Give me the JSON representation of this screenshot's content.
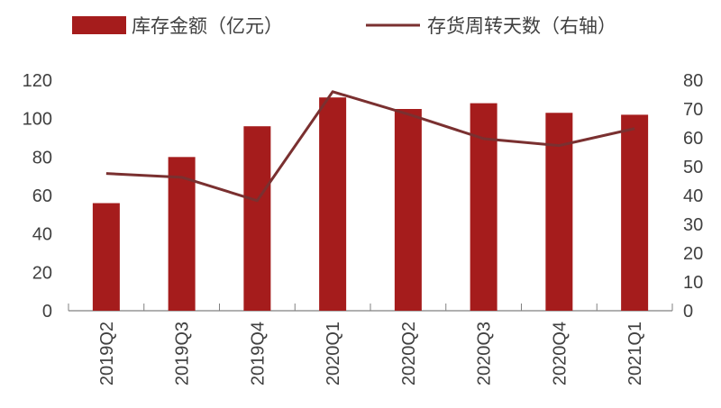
{
  "chart_data": {
    "type": "bar",
    "categories": [
      "2019Q2",
      "2019Q3",
      "2019Q4",
      "2020Q1",
      "2020Q2",
      "2020Q3",
      "2020Q4",
      "2021Q1"
    ],
    "series": [
      {
        "name": "库存金额（亿元）",
        "type": "bar",
        "axis": "left",
        "color": "#A51C1C",
        "values": [
          56,
          80,
          96,
          111,
          105,
          108,
          103,
          102
        ]
      },
      {
        "name": "存货周转天数（右轴）",
        "type": "line",
        "axis": "right",
        "color": "#7A3030",
        "values": [
          47.6,
          46.3,
          38.2,
          76,
          68.2,
          59.7,
          57.3,
          63.2
        ]
      }
    ],
    "left_axis": {
      "ylim": [
        0,
        120
      ],
      "ticks": [
        0,
        20,
        40,
        60,
        80,
        100,
        120
      ]
    },
    "right_axis": {
      "ylim": [
        0,
        80
      ],
      "ticks": [
        0,
        10,
        20,
        30,
        40,
        50,
        60,
        70,
        80
      ]
    },
    "grid": false,
    "legend_position": "top"
  }
}
